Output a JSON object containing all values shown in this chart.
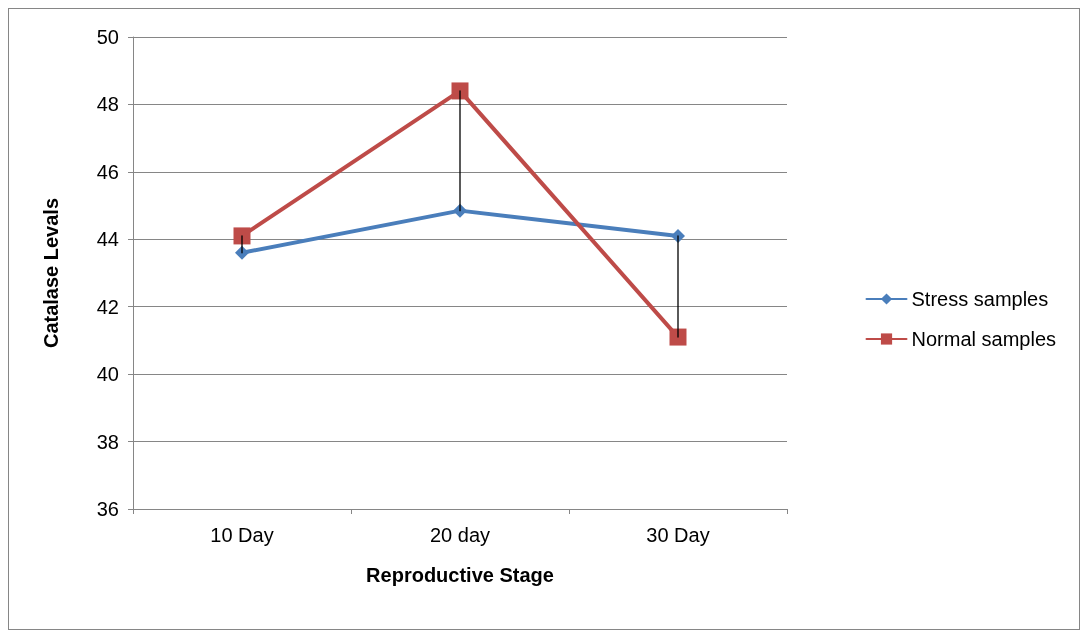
{
  "chart_data": {
    "type": "line",
    "xlabel": "Reproductive Stage",
    "ylabel": "Catalase Levals",
    "categories": [
      "10 Day",
      "20 day",
      "30 Day"
    ],
    "series": [
      {
        "name": "Stress samples",
        "color": "#4a7ebb",
        "marker": "diamond",
        "values": [
          43.6,
          44.85,
          44.1
        ]
      },
      {
        "name": "Normal samples",
        "color": "#be4b48",
        "marker": "square",
        "values": [
          44.1,
          48.4,
          41.1
        ]
      },
      {
        "color": "#000000",
        "marker": "none",
        "x": [
          "10 Day",
          "10 Day"
        ],
        "values": [
          43.6,
          44.1
        ]
      },
      {
        "color": "#000000",
        "marker": "none",
        "x": [
          "20 day",
          "20 day"
        ],
        "values": [
          44.85,
          48.4
        ]
      },
      {
        "color": "#000000",
        "marker": "none",
        "x": [
          "30 Day",
          "30 Day"
        ],
        "values": [
          44.1,
          41.1
        ]
      }
    ],
    "ylim": [
      36,
      50
    ],
    "yticks": [
      36,
      38,
      40,
      42,
      44,
      46,
      48,
      50
    ],
    "grid": "y",
    "legend": "right"
  }
}
